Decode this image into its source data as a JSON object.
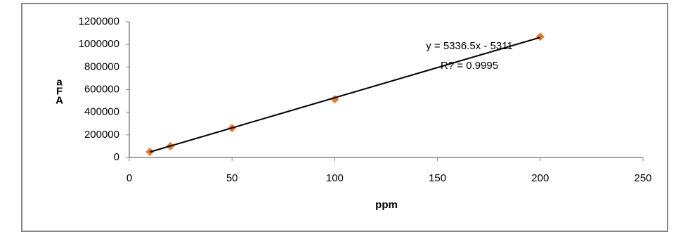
{
  "chart_data": {
    "type": "scatter",
    "xlabel": "ppm",
    "ylabel": "aFA",
    "x": [
      10,
      20,
      50,
      100,
      200
    ],
    "series": [
      {
        "color": "#e8782d",
        "values": [
          50000,
          100000,
          260000,
          515000,
          1068000
        ]
      }
    ],
    "xlim": [
      0,
      250
    ],
    "xticks": [
      0,
      50,
      100,
      150,
      200,
      250
    ],
    "ylim": [
      0,
      1200000
    ],
    "yticks": [
      0,
      200000,
      400000,
      600000,
      800000,
      1000000,
      1200000
    ],
    "grid": false,
    "trendline": {
      "equation": "y = 5336.5x - 5311",
      "r_squared": "R? = 0.9995",
      "slope": 5336.5,
      "intercept": -5311,
      "color": "#000000"
    }
  }
}
